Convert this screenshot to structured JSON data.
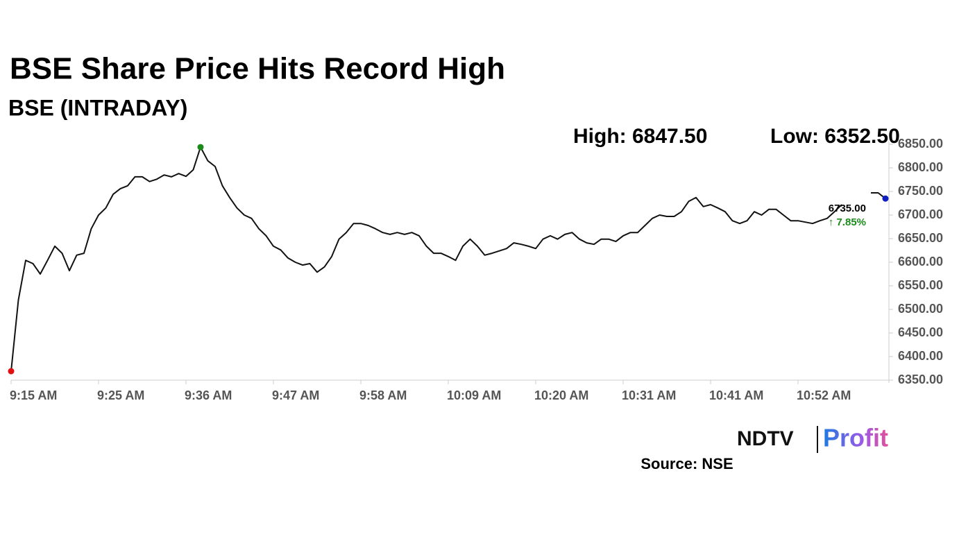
{
  "chart_data": {
    "type": "line",
    "title": "BSE Share Price Hits Record High",
    "subtitle": "BSE (INTRADAY)",
    "high_label": "High: 6847.50",
    "low_label": "Low: 6352.50",
    "last_label": "6735.00",
    "change_label": "↑ 7.85%",
    "change_color": "#1a8a1a",
    "categories": [
      "9:15 AM",
      null,
      null,
      null,
      null,
      null,
      null,
      null,
      null,
      null,
      null,
      null,
      "9:25 AM",
      null,
      null,
      null,
      null,
      null,
      null,
      null,
      null,
      null,
      null,
      null,
      "9:36 AM",
      null,
      null,
      null,
      null,
      null,
      null,
      null,
      null,
      null,
      null,
      null,
      "9:47 AM",
      null,
      null,
      null,
      null,
      null,
      null,
      null,
      null,
      null,
      null,
      null,
      "9:58 AM",
      null,
      null,
      null,
      null,
      null,
      null,
      null,
      null,
      null,
      null,
      null,
      "10:09 AM",
      null,
      null,
      null,
      null,
      null,
      null,
      null,
      null,
      null,
      null,
      null,
      "10:20 AM",
      null,
      null,
      null,
      null,
      null,
      null,
      null,
      null,
      null,
      null,
      null,
      "10:31 AM",
      null,
      null,
      null,
      null,
      null,
      null,
      null,
      null,
      null,
      null,
      null,
      "10:41 AM",
      null,
      null,
      null,
      null,
      null,
      null,
      null,
      null,
      null,
      null,
      null,
      "10:52 AM",
      null,
      null,
      null,
      null,
      null,
      null,
      null,
      null,
      null,
      null,
      null,
      null
    ],
    "values": [
      6369,
      6520,
      6604,
      6597,
      6575,
      6604,
      6634,
      6619,
      6582,
      6615,
      6619,
      6671,
      6700,
      6715,
      6744,
      6756,
      6762,
      6781,
      6781,
      6771,
      6776,
      6785,
      6781,
      6788,
      6782,
      6796,
      6844,
      6815,
      6803,
      6762,
      6737,
      6715,
      6700,
      6693,
      6671,
      6656,
      6634,
      6626,
      6609,
      6600,
      6594,
      6597,
      6579,
      6590,
      6612,
      6649,
      6663,
      6682,
      6682,
      6678,
      6671,
      6663,
      6659,
      6663,
      6659,
      6663,
      6656,
      6634,
      6619,
      6619,
      6612,
      6604,
      6634,
      6649,
      6634,
      6615,
      6619,
      6624,
      6629,
      6641,
      6638,
      6634,
      6629,
      6649,
      6656,
      6649,
      6659,
      6663,
      6649,
      6641,
      6638,
      6649,
      6649,
      6644,
      6656,
      6663,
      6663,
      6678,
      6693,
      6700,
      6697,
      6697,
      6707,
      6729,
      6737,
      6718,
      6722,
      6715,
      6707,
      6688,
      6682,
      6688,
      6707,
      6700,
      6712,
      6712,
      6700,
      6688,
      6688,
      6685,
      6682,
      6688,
      6693,
      6707,
      6722,
      null,
      null,
      null,
      6747,
      6747,
      6735
    ],
    "color": "#111111",
    "start_marker_color": "#e01010",
    "high_marker_color": "#1a8a1a",
    "end_marker_color": "#1020c0",
    "ylim": [
      6350,
      6850
    ],
    "yticks": [
      {
        "value": 6350,
        "label": "6350.00"
      },
      {
        "value": 6400,
        "label": "6400.00"
      },
      {
        "value": 6450,
        "label": "6450.00"
      },
      {
        "value": 6500,
        "label": "6500.00"
      },
      {
        "value": 6550,
        "label": "6550.00"
      },
      {
        "value": 6600,
        "label": "6600.00"
      },
      {
        "value": 6650,
        "label": "6650.00"
      },
      {
        "value": 6700,
        "label": "6700.00"
      },
      {
        "value": 6750,
        "label": "6750.00"
      },
      {
        "value": 6800,
        "label": "6800.00"
      },
      {
        "value": 6850,
        "label": "6850.00"
      }
    ],
    "grid": false,
    "logo": {
      "brand": "NDTV",
      "product": "Profit"
    },
    "source": "Source: NSE"
  }
}
